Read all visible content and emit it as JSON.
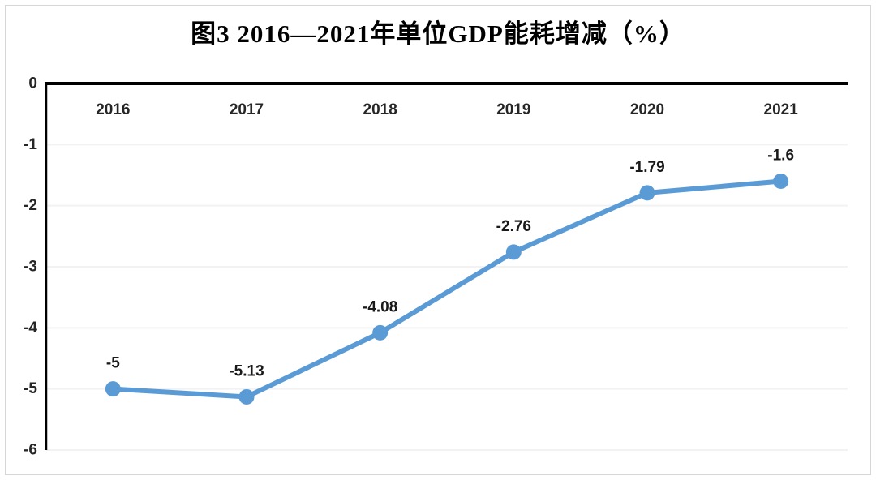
{
  "frame": {
    "border_color": "#d6d6d6",
    "background_color": "#ffffff"
  },
  "chart_data": {
    "type": "line",
    "title": "图3 2016—2021年单位GDP能耗增减（%）",
    "categories": [
      "2016",
      "2017",
      "2018",
      "2019",
      "2020",
      "2021"
    ],
    "series": [
      {
        "name": "单位GDP能耗增减",
        "values": [
          -5,
          -5.13,
          -4.08,
          -2.76,
          -1.79,
          -1.6
        ]
      }
    ],
    "data_labels": [
      "-5",
      "-5.13",
      "-4.08",
      "-2.76",
      "-1.79",
      "-1.6"
    ],
    "y_ticks": [
      0,
      -1,
      -2,
      -3,
      -4,
      -5,
      -6
    ],
    "ylim": [
      -6,
      0
    ],
    "xlabel": "",
    "ylabel": "",
    "grid": true,
    "legend": "none",
    "line_color": "#5b9bd5",
    "marker_color": "#5b9bd5",
    "axis_color": "#000000",
    "gridline_color": "#f2f2f2",
    "label_color": "#262626"
  }
}
